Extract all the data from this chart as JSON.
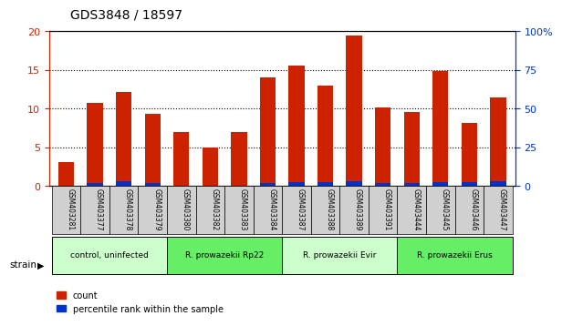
{
  "title": "GDS3848 / 18597",
  "samples": [
    "GSM403281",
    "GSM403377",
    "GSM403378",
    "GSM403379",
    "GSM403380",
    "GSM403382",
    "GSM403383",
    "GSM403384",
    "GSM403387",
    "GSM403388",
    "GSM403389",
    "GSM403391",
    "GSM403444",
    "GSM403445",
    "GSM403446",
    "GSM403447"
  ],
  "count_values": [
    3.1,
    10.7,
    12.1,
    9.3,
    7.0,
    5.0,
    7.0,
    14.0,
    15.6,
    13.0,
    19.4,
    10.2,
    9.6,
    14.8,
    8.2,
    11.4
  ],
  "percentile_values": [
    0.4,
    2.0,
    2.8,
    1.6,
    0.3,
    0.4,
    0.3,
    2.0,
    2.5,
    2.5,
    3.2,
    2.0,
    2.0,
    2.2,
    2.5,
    2.8
  ],
  "bar_color_red": "#cc2200",
  "bar_color_blue": "#0033cc",
  "ylim_left": [
    0,
    20
  ],
  "ylim_right": [
    0,
    100
  ],
  "yticks_left": [
    0,
    5,
    10,
    15,
    20
  ],
  "yticks_right": [
    0,
    25,
    50,
    75,
    100
  ],
  "left_tick_labels": [
    "0",
    "5",
    "10",
    "15",
    "20"
  ],
  "right_tick_labels": [
    "0",
    "25",
    "50",
    "75",
    "100%"
  ],
  "groups": [
    {
      "label": "control, uninfected",
      "start": 0,
      "end": 4,
      "color": "#ccffcc"
    },
    {
      "label": "R. prowazekii Rp22",
      "start": 4,
      "end": 8,
      "color": "#66ee66"
    },
    {
      "label": "R. prowazekii Evir",
      "start": 8,
      "end": 12,
      "color": "#ccffcc"
    },
    {
      "label": "R. prowazekii Erus",
      "start": 12,
      "end": 16,
      "color": "#66ee66"
    }
  ],
  "strain_label": "strain",
  "legend_count_label": "count",
  "legend_percentile_label": "percentile rank within the sample",
  "title_color": "#000000",
  "left_axis_color": "#cc2200",
  "right_axis_color": "#0033cc"
}
